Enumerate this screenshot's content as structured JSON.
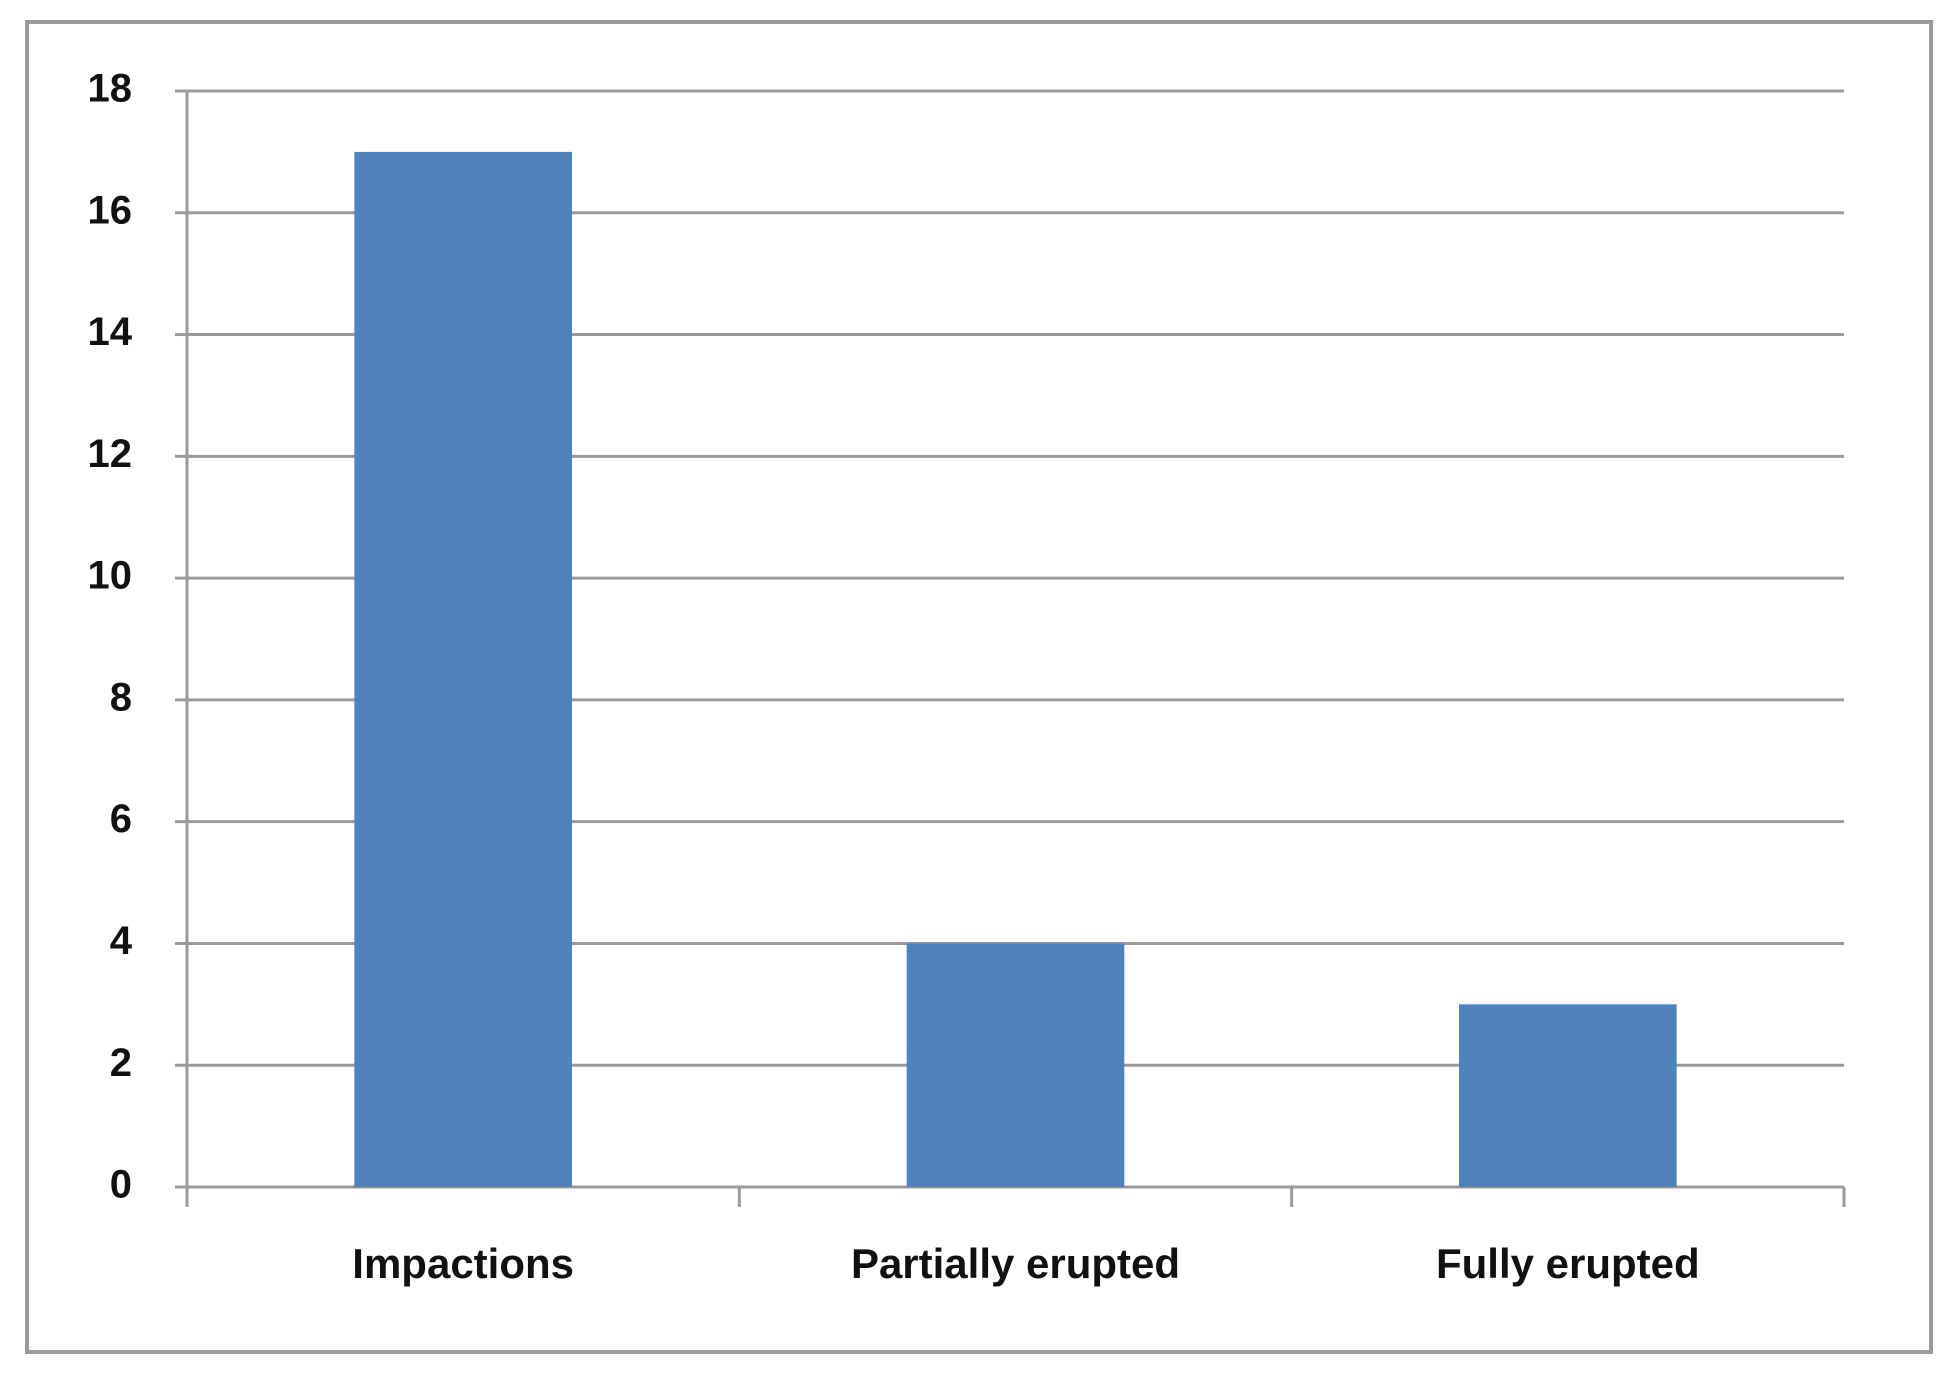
{
  "chart_data": {
    "type": "bar",
    "categories": [
      "Impactions",
      "Partially erupted",
      "Fully erupted"
    ],
    "values": [
      17,
      4,
      3
    ],
    "color": "#4f81bd",
    "ylim": [
      0,
      18
    ],
    "yticks": [
      0,
      2,
      4,
      6,
      8,
      10,
      12,
      14,
      16,
      18
    ],
    "grid": true
  }
}
